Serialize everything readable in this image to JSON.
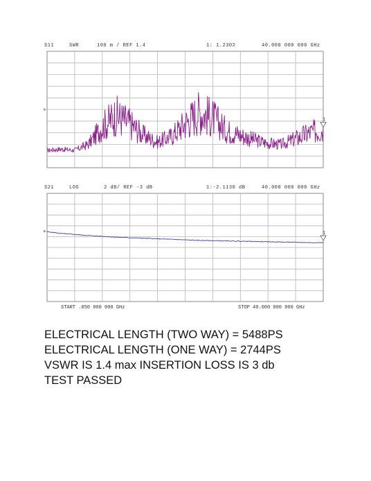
{
  "chart_data": [
    {
      "type": "line",
      "measurement": "S11",
      "format": "SWR",
      "scale": "100 m / REF 1.4",
      "marker_readout": "1: 1.2302",
      "marker_freq": "40.000 000 000 GHz",
      "trace_color": "#8b1f8b",
      "x_range_ghz": [
        0.05,
        40
      ],
      "y_divisions": 10,
      "x_divisions": 10,
      "ylim": [
        0.9,
        1.9
      ],
      "grid": true,
      "series": [
        {
          "x": [
            0.05,
            2,
            4,
            6,
            8,
            10,
            12,
            14,
            16,
            18,
            20,
            22,
            24,
            26,
            28,
            30,
            32,
            34,
            36,
            38,
            40
          ],
          "values": [
            1.05,
            1.06,
            1.05,
            1.1,
            1.25,
            1.35,
            1.28,
            1.18,
            1.12,
            1.17,
            1.28,
            1.38,
            1.33,
            1.22,
            1.18,
            1.14,
            1.11,
            1.1,
            1.15,
            1.2,
            1.2302
          ]
        }
      ]
    },
    {
      "type": "line",
      "measurement": "S21",
      "format": "LOG",
      "scale": "2 dB/ REF -3 dB",
      "marker_readout": "1:-2.1130 dB",
      "marker_freq": "40.000 000 000 GHz",
      "trace_color": "#2a2ea0",
      "x_range_ghz": [
        0.05,
        40
      ],
      "y_divisions": 10,
      "x_divisions": 10,
      "ylim": [
        -13,
        7
      ],
      "grid": true,
      "series": [
        {
          "x": [
            0.05,
            2,
            4,
            6,
            8,
            10,
            12,
            14,
            16,
            18,
            20,
            22,
            24,
            26,
            28,
            30,
            32,
            34,
            36,
            38,
            40
          ],
          "values": [
            -0.1,
            -0.4,
            -0.6,
            -0.8,
            -0.95,
            -1.1,
            -1.2,
            -1.3,
            -1.4,
            -1.5,
            -1.6,
            -1.7,
            -1.75,
            -1.8,
            -1.85,
            -1.9,
            -1.95,
            -2.0,
            -2.05,
            -2.1,
            -2.113
          ]
        }
      ],
      "start_label": "START .050 000 000 GHz",
      "stop_label": "STOP 40.000 000 000 GHz"
    }
  ],
  "summary": {
    "line1": "ELECTRICAL  LENGTH (TWO WAY) = 5488PS",
    "line2": "ELECTRICAL  LENGTH (ONE WAY) = 2744PS",
    "line3": "VSWR IS 1.4 max INSERTION LOSS IS  3 db",
    "line4": "TEST  PASSED"
  }
}
